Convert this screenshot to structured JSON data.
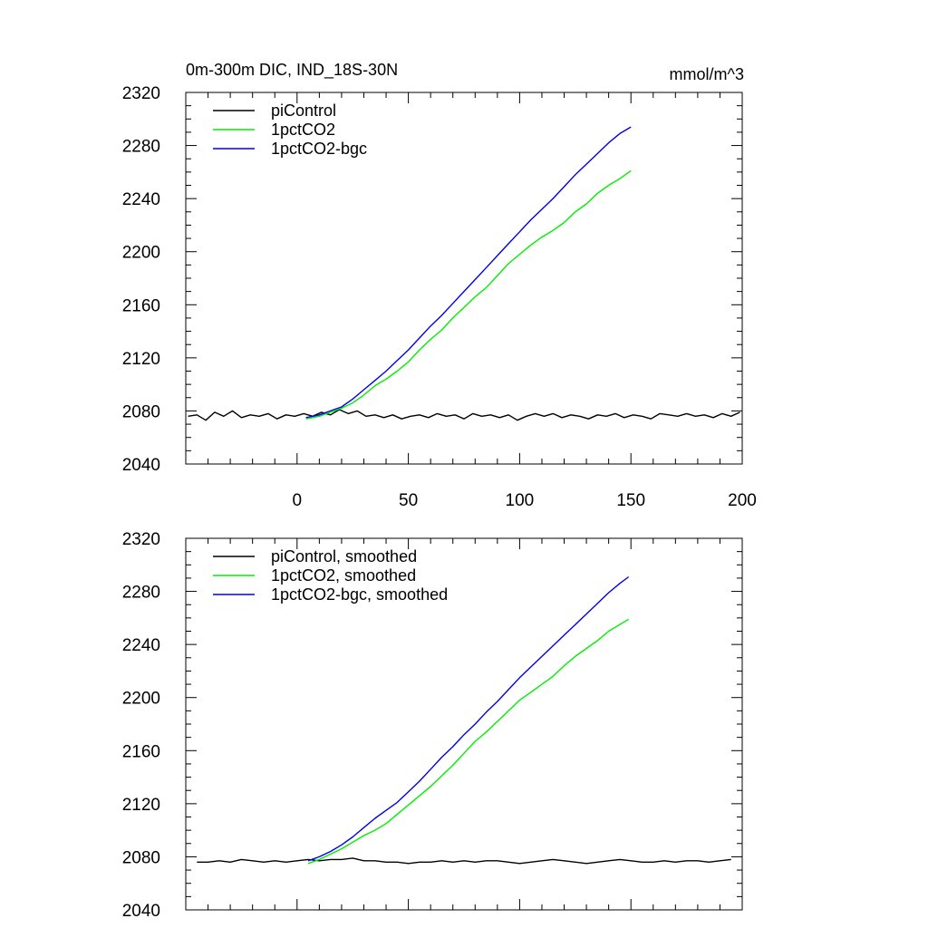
{
  "chart_data": [
    {
      "type": "line",
      "title": "0m-300m DIC, IND_18S-30N",
      "units": "mmol/m^3",
      "xlabel": "",
      "ylabel": "",
      "xlim": [
        -50,
        200
      ],
      "ylim": [
        2040,
        2320
      ],
      "yticks": [
        2040,
        2080,
        2120,
        2160,
        2200,
        2240,
        2280,
        2320
      ],
      "xticks": [
        0,
        50,
        100,
        150,
        200
      ],
      "xtick_labels": [
        "0",
        "50",
        "100",
        "150",
        "200"
      ],
      "legend_position": "top-left",
      "grid": false,
      "series": [
        {
          "name": "piControl",
          "color": "#000000",
          "x": [
            -49,
            -45,
            -41,
            -37,
            -33,
            -29,
            -25,
            -21,
            -17,
            -13,
            -9,
            -5,
            -1,
            3,
            7,
            11,
            15,
            19,
            23,
            27,
            31,
            35,
            39,
            43,
            47,
            51,
            55,
            59,
            63,
            67,
            71,
            75,
            79,
            83,
            87,
            91,
            95,
            99,
            103,
            107,
            111,
            115,
            119,
            123,
            127,
            131,
            135,
            139,
            143,
            147,
            151,
            155,
            159,
            163,
            167,
            171,
            175,
            179,
            183,
            187,
            191,
            195,
            199
          ],
          "values": [
            2076,
            2077,
            2073,
            2079,
            2076,
            2080,
            2075,
            2077,
            2076,
            2078,
            2074,
            2077,
            2076,
            2078,
            2076,
            2079,
            2077,
            2081,
            2078,
            2080,
            2076,
            2077,
            2075,
            2077,
            2074,
            2076,
            2077,
            2075,
            2078,
            2076,
            2077,
            2074,
            2078,
            2076,
            2077,
            2075,
            2077,
            2073,
            2076,
            2078,
            2076,
            2078,
            2075,
            2077,
            2076,
            2074,
            2077,
            2076,
            2078,
            2075,
            2077,
            2076,
            2074,
            2078,
            2077,
            2076,
            2078,
            2076,
            2077,
            2075,
            2078,
            2076,
            2079
          ]
        },
        {
          "name": "1pctCO2",
          "color": "#00ee00",
          "x": [
            4,
            10,
            15,
            20,
            25,
            30,
            35,
            40,
            45,
            50,
            55,
            60,
            65,
            70,
            75,
            80,
            85,
            90,
            95,
            100,
            105,
            110,
            115,
            120,
            125,
            130,
            135,
            140,
            145,
            150
          ],
          "values": [
            2074,
            2076,
            2079,
            2082,
            2086,
            2092,
            2099,
            2104,
            2110,
            2117,
            2126,
            2134,
            2141,
            2150,
            2158,
            2166,
            2173,
            2182,
            2191,
            2198,
            2205,
            2211,
            2216,
            2222,
            2230,
            2236,
            2244,
            2250,
            2255,
            2261
          ]
        },
        {
          "name": "1pctCO2-bgc",
          "color": "#0000ee",
          "x": [
            4,
            10,
            15,
            20,
            25,
            30,
            35,
            40,
            45,
            50,
            55,
            60,
            65,
            70,
            75,
            80,
            85,
            90,
            95,
            100,
            105,
            110,
            115,
            120,
            125,
            130,
            135,
            140,
            145,
            150
          ],
          "values": [
            2075,
            2077,
            2080,
            2083,
            2089,
            2096,
            2103,
            2110,
            2118,
            2126,
            2135,
            2144,
            2152,
            2161,
            2170,
            2179,
            2188,
            2197,
            2206,
            2215,
            2224,
            2232,
            2240,
            2249,
            2258,
            2266,
            2274,
            2282,
            2289,
            2294
          ]
        }
      ]
    },
    {
      "type": "line",
      "title": "",
      "units": "",
      "xlabel": "",
      "ylabel": "",
      "xlim": [
        -50,
        200
      ],
      "ylim": [
        2040,
        2320
      ],
      "yticks": [
        2040,
        2080,
        2120,
        2160,
        2200,
        2240,
        2280,
        2320
      ],
      "xticks": [
        0,
        50,
        100,
        150,
        200
      ],
      "xtick_labels": [],
      "legend_position": "top-left",
      "grid": false,
      "series": [
        {
          "name": "piControl, smoothed",
          "color": "#000000",
          "x": [
            -45,
            -40,
            -35,
            -30,
            -25,
            -20,
            -15,
            -10,
            -5,
            0,
            5,
            10,
            15,
            20,
            25,
            30,
            35,
            40,
            45,
            50,
            55,
            60,
            65,
            70,
            75,
            80,
            85,
            90,
            95,
            100,
            105,
            110,
            115,
            120,
            125,
            130,
            135,
            140,
            145,
            150,
            155,
            160,
            165,
            170,
            175,
            180,
            185,
            190,
            195
          ],
          "values": [
            2076,
            2076,
            2077,
            2076,
            2078,
            2077,
            2076,
            2077,
            2076,
            2077,
            2078,
            2077,
            2078,
            2078,
            2079,
            2077,
            2077,
            2076,
            2076,
            2075,
            2076,
            2076,
            2077,
            2076,
            2077,
            2076,
            2077,
            2077,
            2076,
            2075,
            2076,
            2077,
            2078,
            2077,
            2076,
            2075,
            2076,
            2077,
            2078,
            2077,
            2076,
            2076,
            2077,
            2076,
            2077,
            2077,
            2076,
            2077,
            2078
          ]
        },
        {
          "name": "1pctCO2, smoothed",
          "color": "#00ee00",
          "x": [
            5,
            10,
            15,
            20,
            25,
            30,
            35,
            40,
            45,
            50,
            55,
            60,
            65,
            70,
            75,
            80,
            85,
            90,
            95,
            100,
            105,
            110,
            115,
            120,
            125,
            130,
            135,
            140,
            145,
            149
          ],
          "values": [
            2075,
            2078,
            2082,
            2086,
            2091,
            2096,
            2100,
            2105,
            2112,
            2119,
            2126,
            2133,
            2141,
            2149,
            2158,
            2167,
            2174,
            2182,
            2190,
            2198,
            2204,
            2210,
            2216,
            2224,
            2231,
            2237,
            2243,
            2250,
            2255,
            2259
          ]
        },
        {
          "name": "1pctCO2-bgc, smoothed",
          "color": "#0000ee",
          "x": [
            5,
            10,
            15,
            20,
            25,
            30,
            35,
            40,
            45,
            50,
            55,
            60,
            65,
            70,
            75,
            80,
            85,
            90,
            95,
            100,
            105,
            110,
            115,
            120,
            125,
            130,
            135,
            140,
            145,
            149
          ],
          "values": [
            2077,
            2080,
            2084,
            2089,
            2095,
            2102,
            2109,
            2115,
            2121,
            2129,
            2137,
            2146,
            2155,
            2163,
            2172,
            2180,
            2189,
            2197,
            2206,
            2215,
            2223,
            2231,
            2239,
            2247,
            2255,
            2263,
            2271,
            2279,
            2286,
            2291
          ]
        }
      ]
    }
  ]
}
